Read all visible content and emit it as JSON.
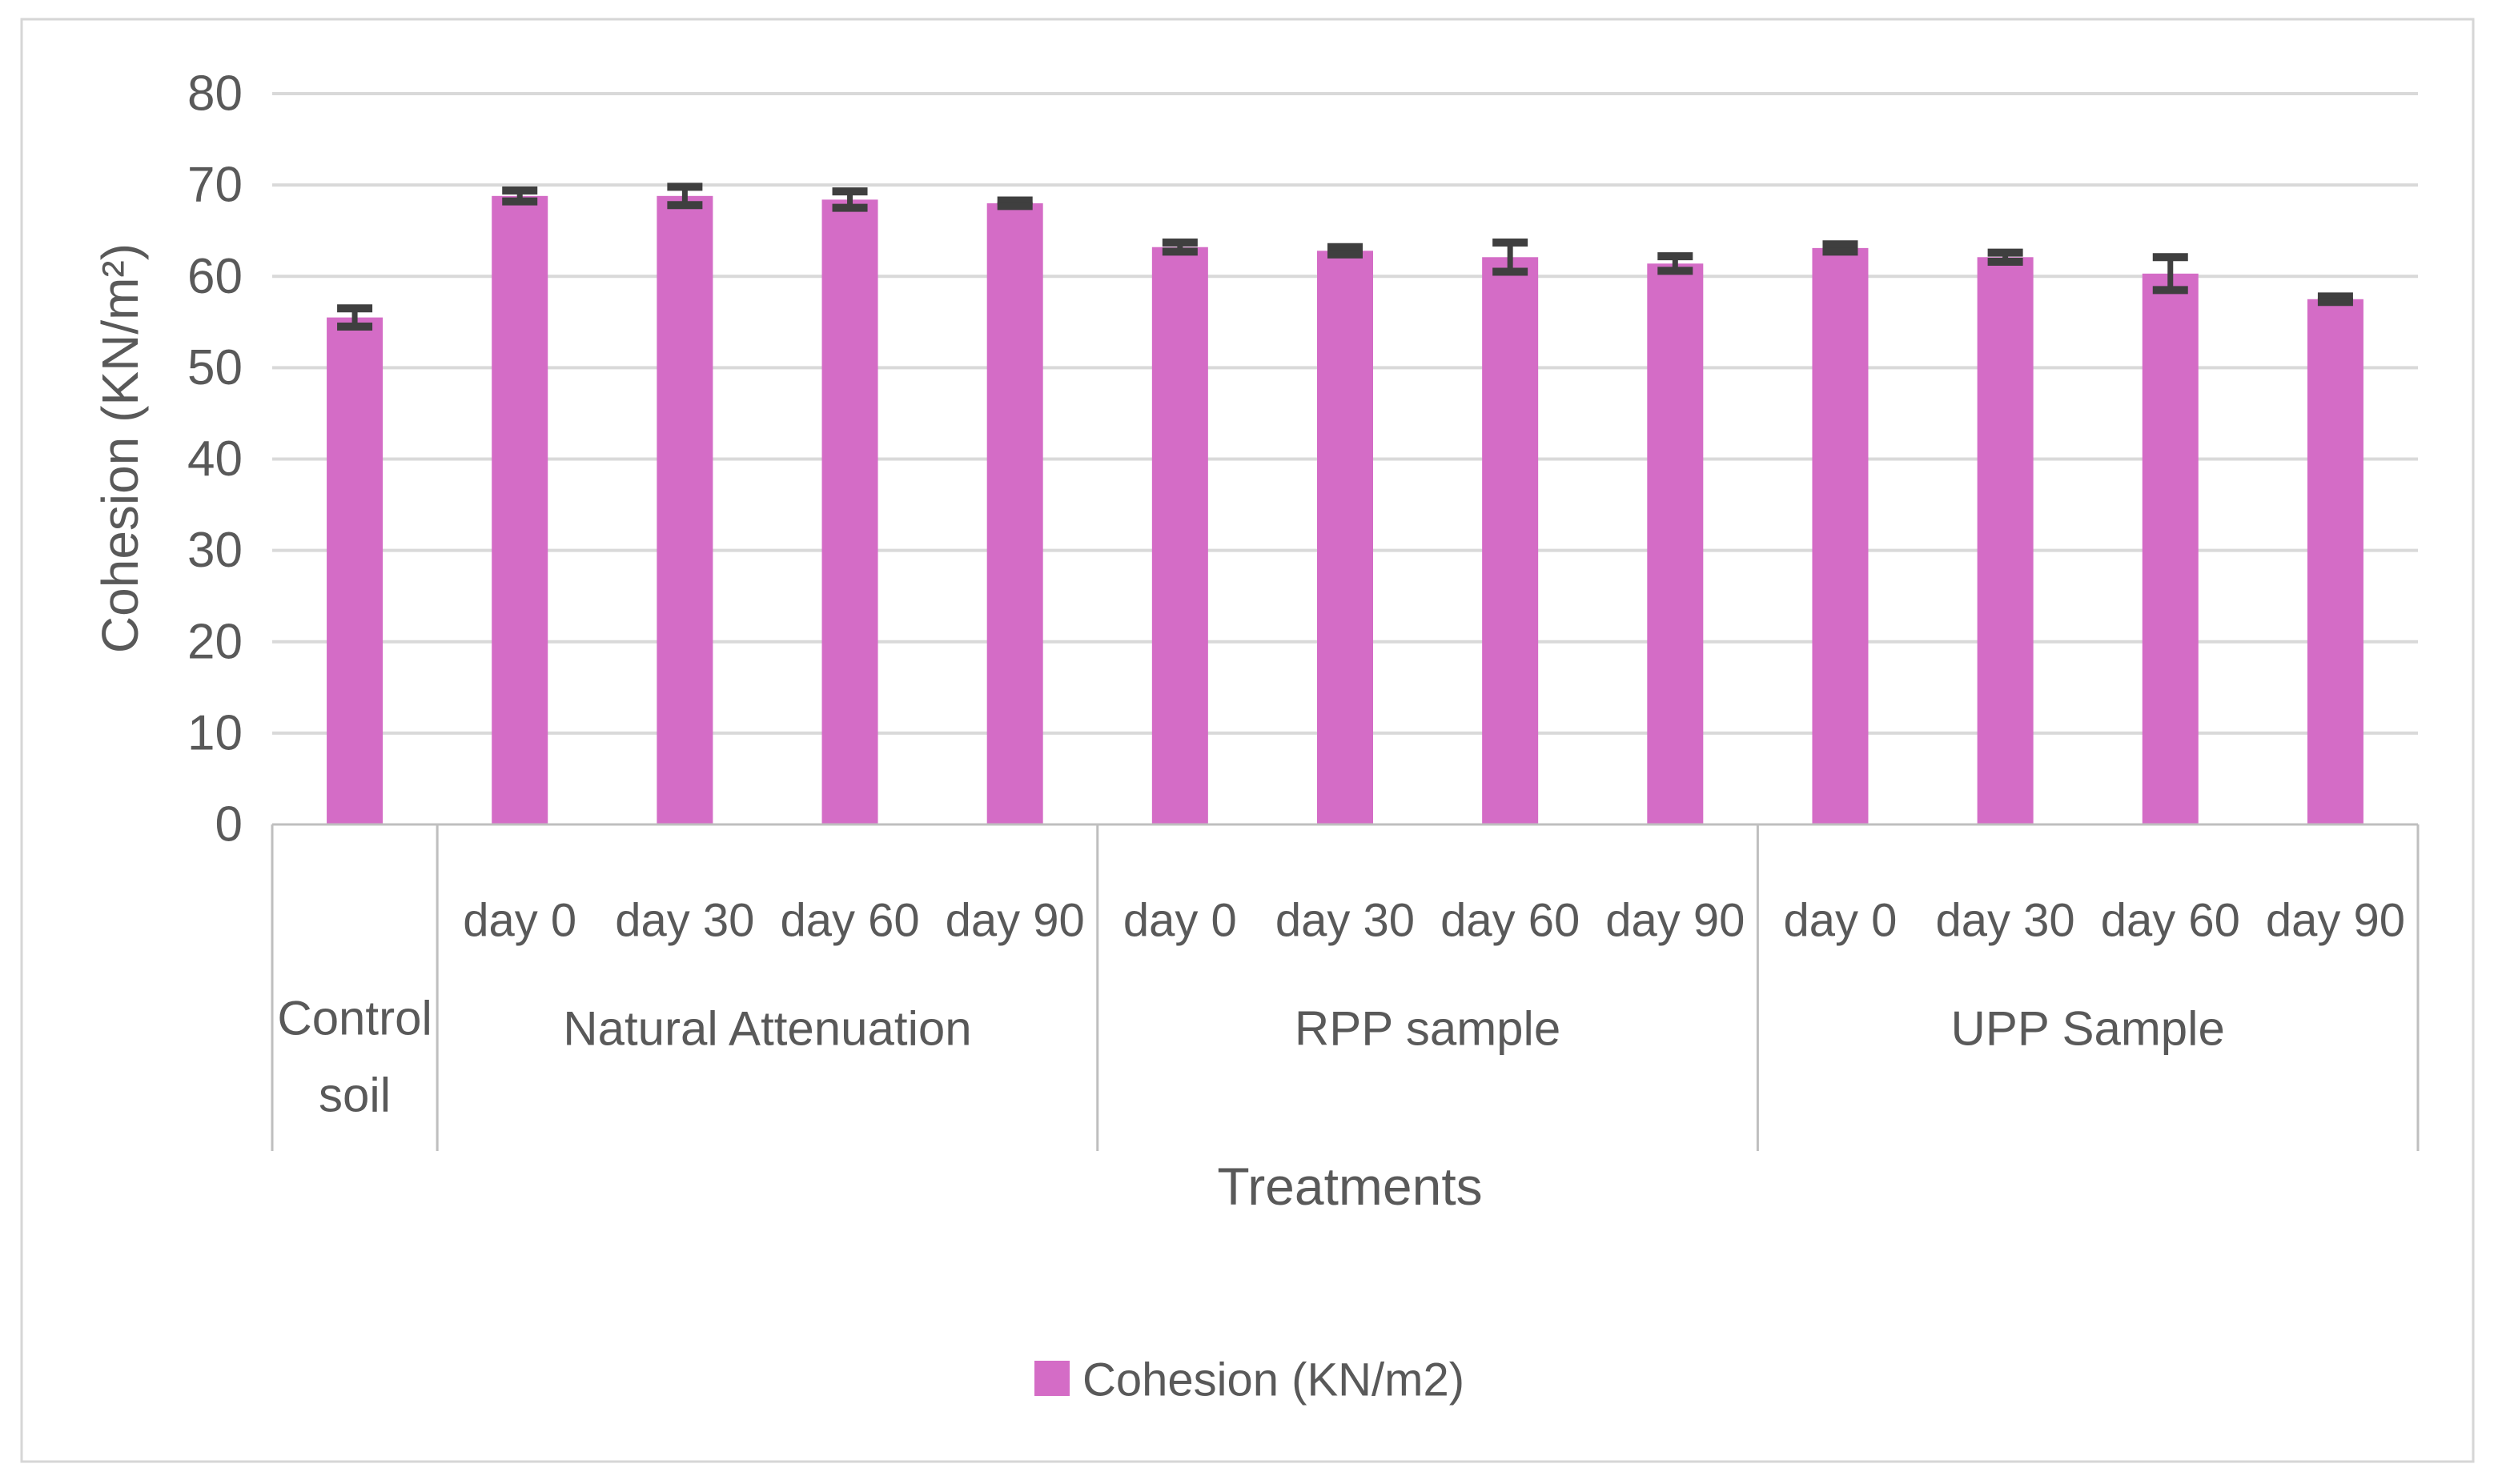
{
  "chart_data": {
    "type": "bar",
    "title": "",
    "xlabel": "Treatments",
    "ylabel": "Cohesion (KN/m²)",
    "ylim": [
      0,
      80
    ],
    "yticks": [
      0,
      10,
      20,
      30,
      40,
      50,
      60,
      70,
      80
    ],
    "grid": true,
    "bar_color": "#d46cc6",
    "error_bar_color": "#3f3f3f",
    "gridline_color": "#d9d9d9",
    "axis_line_color": "#bfbfbf",
    "text_color": "#595959",
    "legend": {
      "position": "bottom",
      "entries": [
        {
          "label": "Cohesion (KN/m2)",
          "color": "#d46cc6"
        }
      ]
    },
    "groups": [
      {
        "label": "Control soil",
        "bars": [
          {
            "day": "",
            "value": 55.5,
            "error": 1.0
          }
        ]
      },
      {
        "label": "Natural Attenuation",
        "bars": [
          {
            "day": "day 0",
            "value": 68.8,
            "error": 0.6
          },
          {
            "day": "day 30",
            "value": 68.8,
            "error": 1.0
          },
          {
            "day": "day 60",
            "value": 68.4,
            "error": 0.9
          },
          {
            "day": "day 90",
            "value": 68.0,
            "error": 0.3
          }
        ]
      },
      {
        "label": "RPP sample",
        "bars": [
          {
            "day": "day 0",
            "value": 63.2,
            "error": 0.5
          },
          {
            "day": "day 30",
            "value": 62.8,
            "error": 0.4
          },
          {
            "day": "day 60",
            "value": 62.1,
            "error": 1.6
          },
          {
            "day": "day 90",
            "value": 61.4,
            "error": 0.8
          }
        ]
      },
      {
        "label": "UPP Sample",
        "bars": [
          {
            "day": "day 0",
            "value": 63.1,
            "error": 0.4
          },
          {
            "day": "day 30",
            "value": 62.1,
            "error": 0.5
          },
          {
            "day": "day 60",
            "value": 60.3,
            "error": 1.8
          },
          {
            "day": "day 90",
            "value": 57.5,
            "error": 0.3
          }
        ]
      }
    ]
  }
}
